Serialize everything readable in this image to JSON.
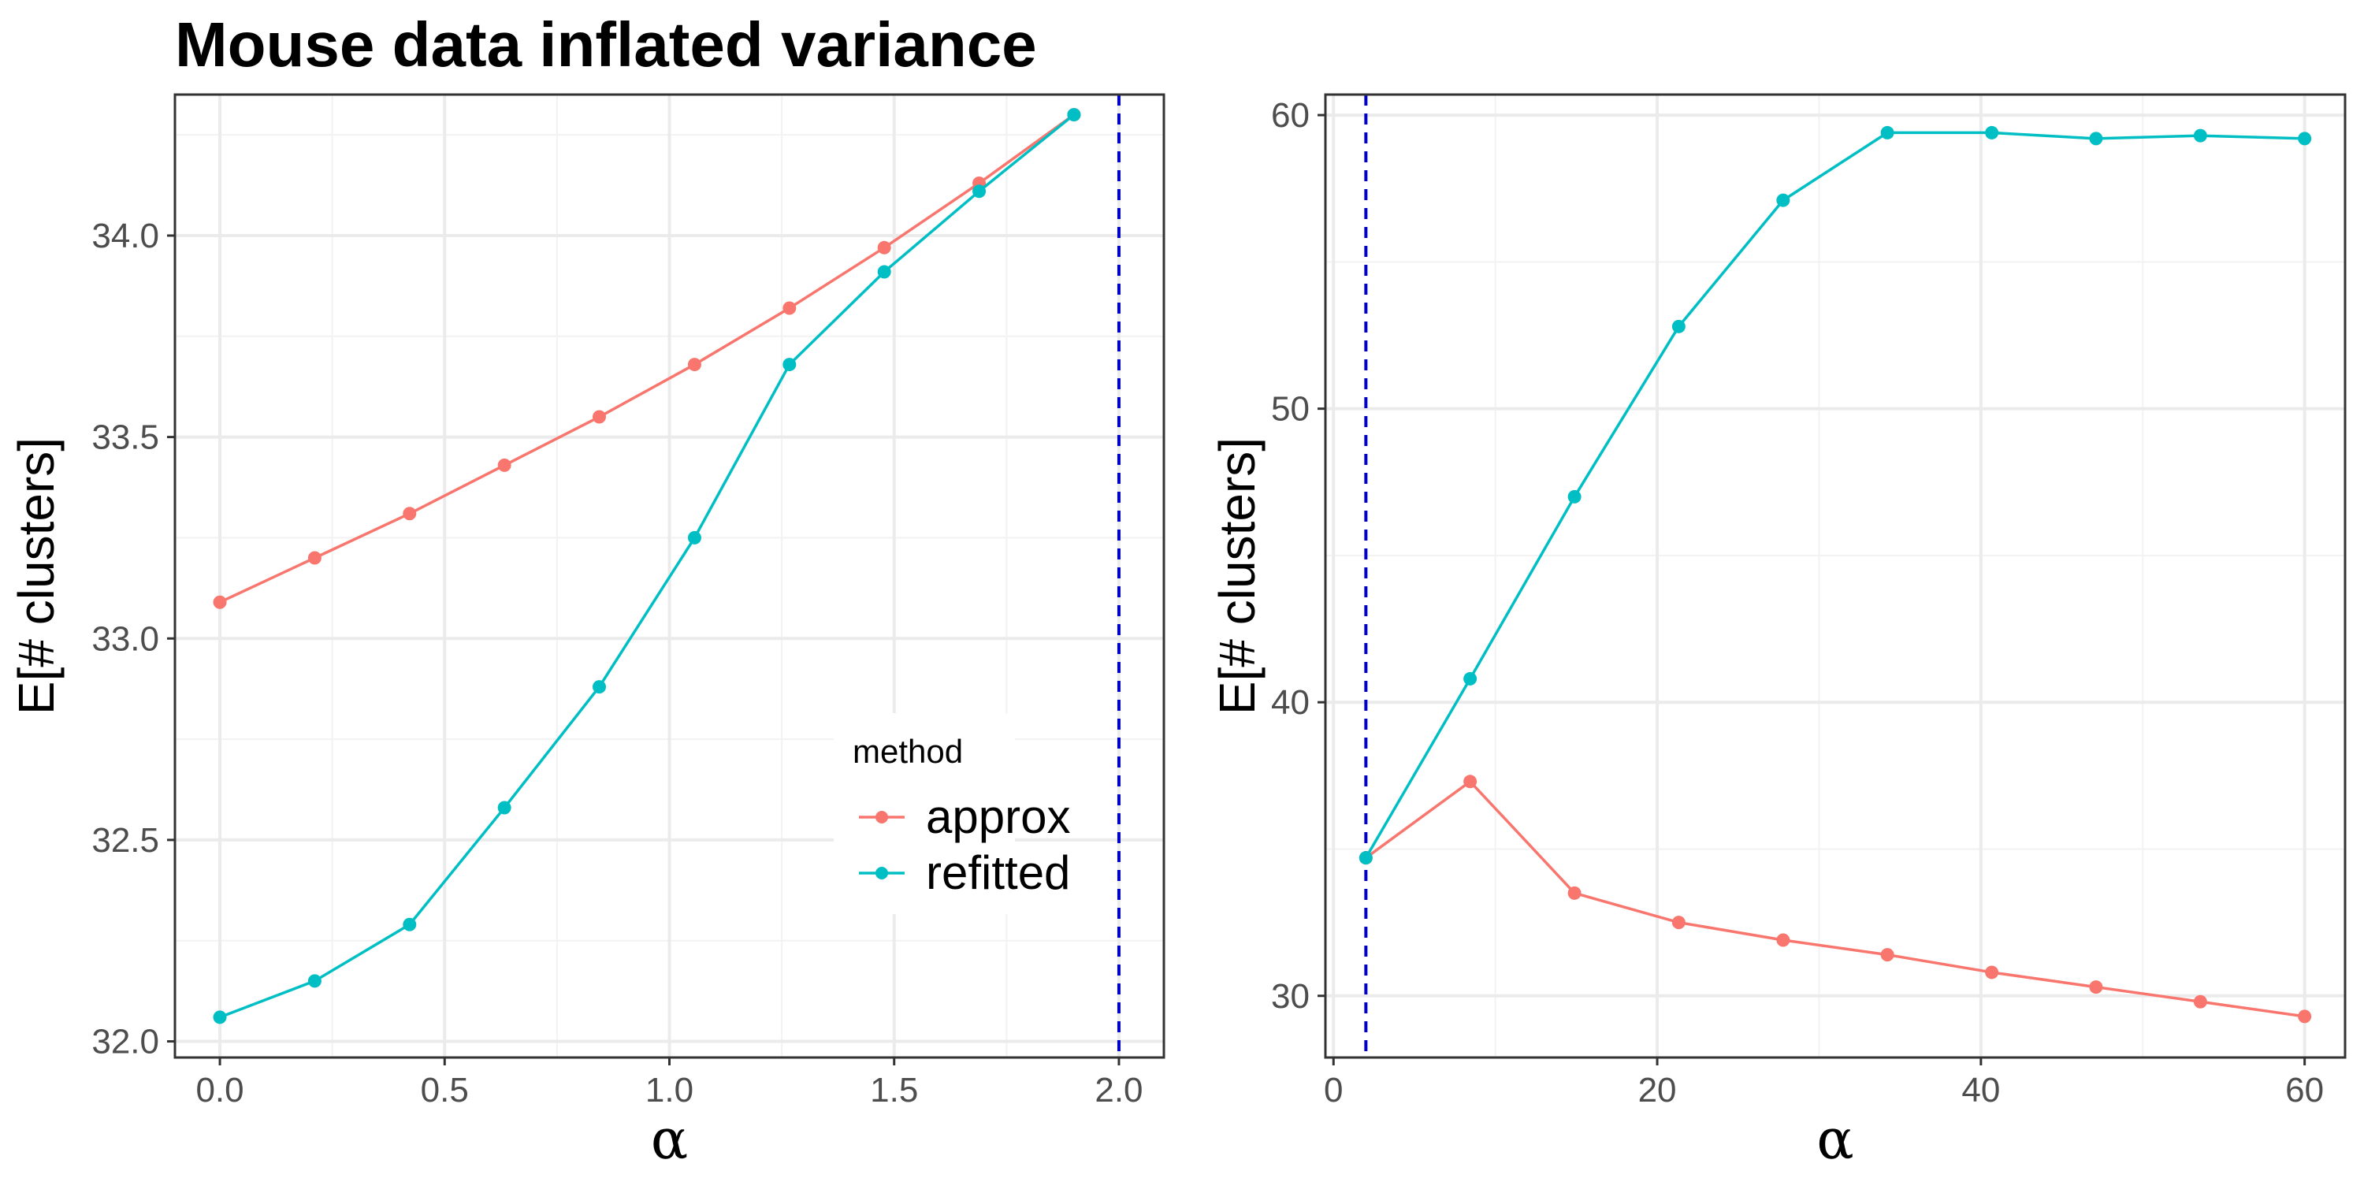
{
  "title": "Mouse data inflated variance",
  "colors": {
    "approx": "#F8766D",
    "refitted": "#00BFC4",
    "vline": "#0000CD"
  },
  "legend": {
    "title": "method",
    "entries": [
      {
        "label": "approx",
        "color": "#F8766D"
      },
      {
        "label": "refitted",
        "color": "#00BFC4"
      }
    ]
  },
  "chart_data": [
    {
      "type": "line",
      "title": "Mouse data inflated variance",
      "xlabel": "α",
      "ylabel": "E[# clusters]",
      "xlim": [
        -0.1,
        2.1
      ],
      "ylim": [
        31.96,
        34.35
      ],
      "x_ticks": [
        0.0,
        0.5,
        1.0,
        1.5,
        2.0
      ],
      "x_tick_labels": [
        "0.0",
        "0.5",
        "1.0",
        "1.5",
        "2.0"
      ],
      "y_ticks": [
        32.0,
        32.5,
        33.0,
        33.5,
        34.0
      ],
      "y_tick_labels": [
        "32.0",
        "32.5",
        "33.0",
        "33.5",
        "34.0"
      ],
      "vline": 2.0,
      "grid": true,
      "legend_position": "bottom-right",
      "x": [
        0.0,
        0.211,
        0.422,
        0.633,
        0.844,
        1.056,
        1.267,
        1.478,
        1.689,
        1.9
      ],
      "series": [
        {
          "name": "approx",
          "values": [
            33.09,
            33.2,
            33.31,
            33.43,
            33.55,
            33.68,
            33.82,
            33.97,
            34.13,
            34.3
          ]
        },
        {
          "name": "refitted",
          "values": [
            32.06,
            32.15,
            32.29,
            32.58,
            32.88,
            33.25,
            33.68,
            33.91,
            34.11,
            34.3
          ]
        }
      ]
    },
    {
      "type": "line",
      "xlabel": "α",
      "ylabel": "E[# clusters]",
      "xlim": [
        -0.5,
        62.5
      ],
      "ylim": [
        27.9,
        60.7
      ],
      "x_ticks": [
        0,
        20,
        40,
        60
      ],
      "x_tick_labels": [
        "0",
        "20",
        "40",
        "60"
      ],
      "y_ticks": [
        30,
        40,
        50,
        60
      ],
      "y_tick_labels": [
        "30",
        "40",
        "50",
        "60"
      ],
      "vline": 2.0,
      "grid": true,
      "x": [
        2.0,
        8.44,
        14.89,
        21.33,
        27.78,
        34.22,
        40.67,
        47.11,
        53.56,
        60.0
      ],
      "series": [
        {
          "name": "approx",
          "values": [
            34.7,
            37.3,
            33.5,
            32.5,
            31.9,
            31.4,
            30.8,
            30.3,
            29.8,
            29.3
          ]
        },
        {
          "name": "refitted",
          "values": [
            34.7,
            40.8,
            47.0,
            52.8,
            57.1,
            59.4,
            59.4,
            59.2,
            59.3,
            59.2
          ]
        }
      ]
    }
  ]
}
